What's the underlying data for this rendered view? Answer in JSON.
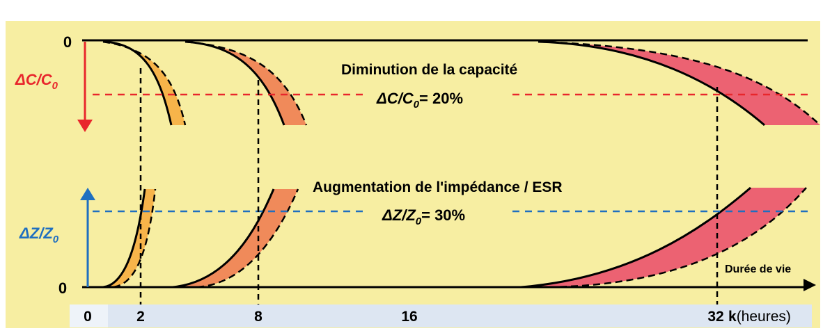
{
  "capacity": {
    "zero_label": "0",
    "axis_label": "ΔC/C",
    "axis_sub": "0",
    "title": "Diminution de la capacité",
    "threshold_main": "ΔC/C",
    "threshold_sub": "0",
    "threshold_value": "= 20%"
  },
  "impedance": {
    "zero_label": "0",
    "axis_label": "ΔZ/Z",
    "axis_sub": "0",
    "title": "Augmentation de l'impédance / ESR",
    "threshold_main": "ΔZ/Z",
    "threshold_sub": "0",
    "threshold_value": "= 30%"
  },
  "time_axis": {
    "label": "Durée de vie",
    "ticks": [
      "0",
      "2",
      "8",
      "16",
      "32"
    ],
    "unit_k": "k",
    "unit": "(heures)"
  },
  "colors": {
    "capacity_axis": "#e8262c",
    "impedance_axis": "#1f6fc0",
    "band_2k": "#f7b44a",
    "band_8k": "#f08a5a",
    "band_32k": "#ec6272",
    "background": "#f7eea2",
    "tick_strip": "#dde6f2"
  }
}
